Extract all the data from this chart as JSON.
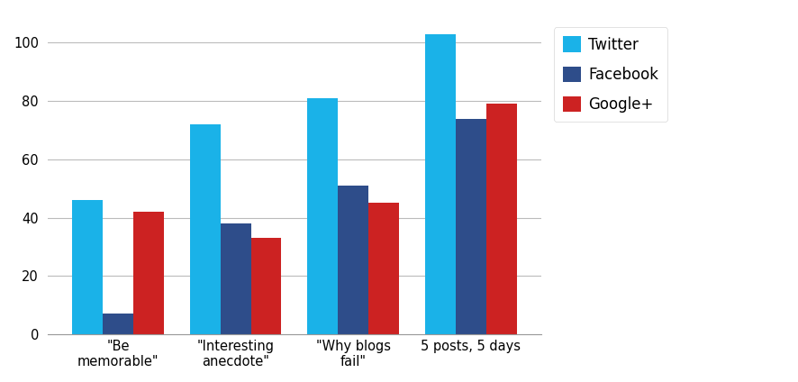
{
  "categories": [
    "\"Be\nmemorable\"",
    "\"Interesting\nanecdote\"",
    "\"Why blogs\nfail\"",
    "5 posts, 5 days"
  ],
  "series": {
    "Twitter": [
      46,
      72,
      81,
      103
    ],
    "Facebook": [
      7,
      38,
      51,
      74
    ],
    "Google+": [
      42,
      33,
      45,
      79
    ]
  },
  "colors": {
    "Twitter": "#1AB2E8",
    "Facebook": "#2E4D8A",
    "Google+": "#CC2222"
  },
  "legend_labels": [
    "Twitter",
    "Facebook",
    "Google+"
  ],
  "ylim": [
    0,
    110
  ],
  "yticks": [
    0,
    20,
    40,
    60,
    80,
    100
  ],
  "background_color": "#FFFFFF",
  "grid_color": "#BBBBBB",
  "bar_width": 0.26,
  "figsize": [
    8.86,
    4.24
  ],
  "dpi": 100
}
